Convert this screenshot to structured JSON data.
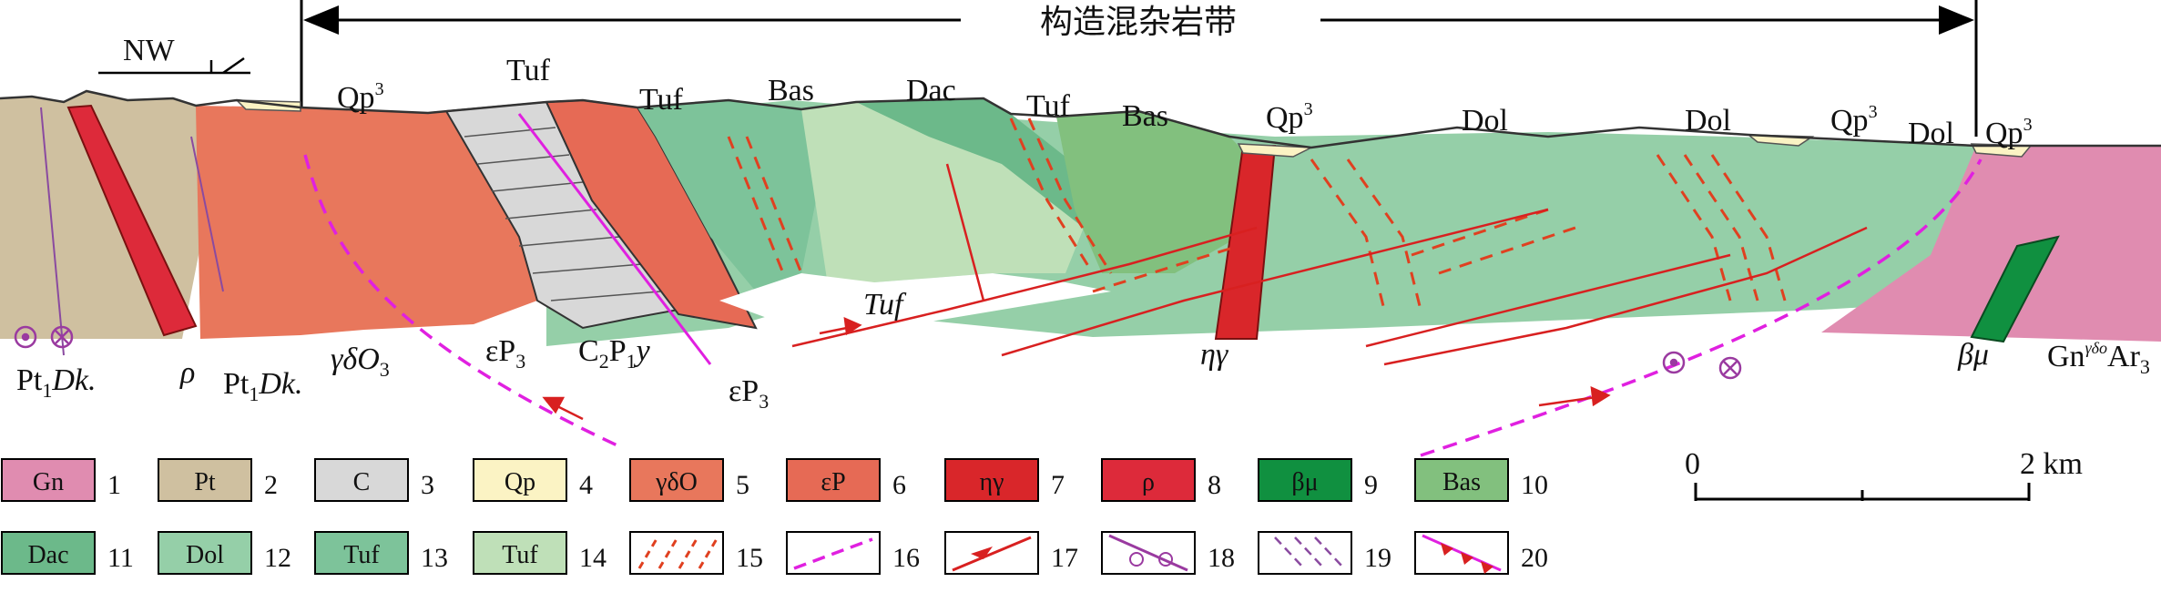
{
  "title": "构造混杂岩带",
  "north_arrow": {
    "label": "NW"
  },
  "section_labels": {
    "qp1": "Qp",
    "qp2": "Qp",
    "qp3": "Qp",
    "qp4": "Qp",
    "qp_sup": "3",
    "tuf1": "Tuf",
    "tuf2": "Tuf",
    "tuf3": "Tuf",
    "tuf_it": "Tuf",
    "bas1": "Bas",
    "bas2": "Bas",
    "dac1": "Dac",
    "dol1": "Dol",
    "dol2": "Dol",
    "dol3": "Dol",
    "pt_left": "Pt",
    "pt_mid": "Pt",
    "pt_sub": "1",
    "pt_dk": "Dk.",
    "rho": "ρ",
    "gdo": "γδO",
    "gdo_sub": "3",
    "ep1": "εP",
    "ep2": "εP",
    "ep_sub": "3",
    "cp": "C",
    "cp_sub1": "2",
    "cp_p": "P",
    "cp_sub2": "1",
    "cp_y": "y",
    "eta": "ηγ",
    "beta": "βμ",
    "gn": "Gn",
    "gn_sup": "γδo",
    "gn_ar": "Ar",
    "gn_sub": "3"
  },
  "scale_bar": {
    "start": "0",
    "end": "2 km"
  },
  "legend": [
    {
      "n": "1",
      "text": "Gn",
      "color": "#e08cb0"
    },
    {
      "n": "2",
      "text": "Pt",
      "color": "#cfc0a0"
    },
    {
      "n": "3",
      "text": "C",
      "color": "#d8d8d8"
    },
    {
      "n": "4",
      "text": "Qp",
      "color": "#fbf3c4"
    },
    {
      "n": "5",
      "text": "γδO",
      "color": "#e8775c"
    },
    {
      "n": "6",
      "text": "εP",
      "color": "#e66a55"
    },
    {
      "n": "7",
      "text": "ηγ",
      "color": "#d9262a"
    },
    {
      "n": "8",
      "text": "ρ",
      "color": "#dd2a3a"
    },
    {
      "n": "9",
      "text": "βμ",
      "color": "#109040"
    },
    {
      "n": "10",
      "text": "Bas",
      "color": "#82c07e"
    },
    {
      "n": "11",
      "text": "Dac",
      "color": "#6cb98a"
    },
    {
      "n": "12",
      "text": "Dol",
      "color": "#95cfa8"
    },
    {
      "n": "13",
      "text": "Tuf",
      "color": "#7dc39a"
    },
    {
      "n": "14",
      "text": "Tuf",
      "color": "#bfe0b8"
    },
    {
      "n": "15",
      "text": "",
      "color": "#ffffff"
    },
    {
      "n": "16",
      "text": "",
      "color": "#ffffff"
    },
    {
      "n": "17",
      "text": "",
      "color": "#ffffff"
    },
    {
      "n": "18",
      "text": "",
      "color": "#ffffff"
    },
    {
      "n": "19",
      "text": "",
      "color": "#ffffff"
    },
    {
      "n": "20",
      "text": "",
      "color": "#ffffff"
    }
  ],
  "colors": {
    "gneiss": "#e08cb0",
    "pt": "#cfc0a0",
    "limestone": "#d8d8d8",
    "qp": "#fbf3c4",
    "gdo": "#e8775c",
    "ep": "#e66a55",
    "eta": "#d9262a",
    "rho": "#dd2a3a",
    "beta": "#109040",
    "bas": "#82c07e",
    "dac": "#6cb98a",
    "dol": "#95cfa8",
    "tuf": "#7dc39a",
    "tuf_light": "#bfe0b8",
    "fault": "#d82020",
    "boundary": "#e020e0",
    "dike": "#8a4aa0"
  }
}
